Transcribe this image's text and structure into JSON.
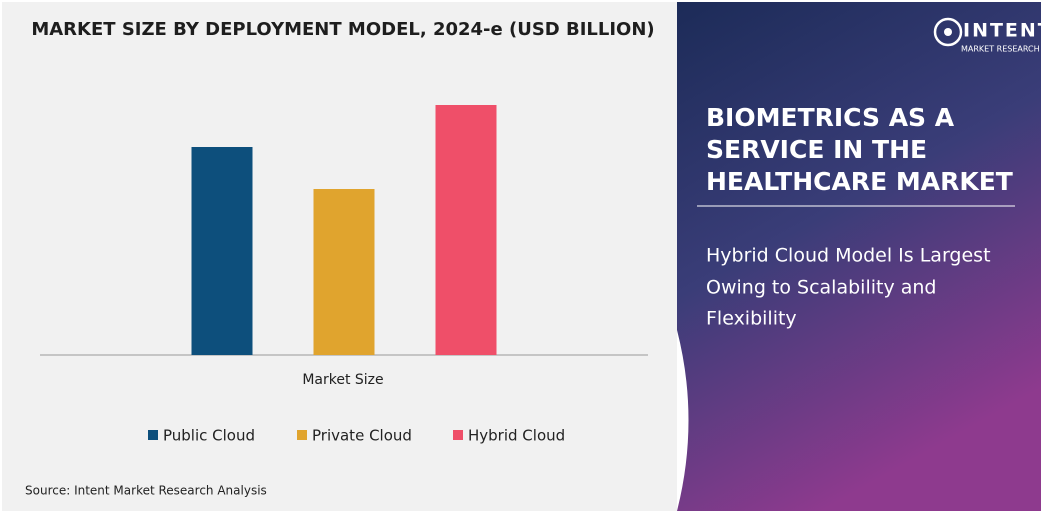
{
  "chart_data": {
    "type": "bar",
    "title": "MARKET SIZE BY DEPLOYMENT MODEL, 2024-e (USD BILLION)",
    "categories": [
      "Market Size"
    ],
    "series": [
      {
        "name": "Public Cloud",
        "color": "#0d4f7c",
        "values": [
          208
        ]
      },
      {
        "name": "Private Cloud",
        "color": "#e0a42e",
        "values": [
          166
        ]
      },
      {
        "name": "Hybrid Cloud",
        "color": "#ef4f69",
        "values": [
          250
        ]
      }
    ],
    "ylim": [
      0,
      250
    ]
  },
  "source": "Source: Intent Market Research Analysis",
  "brand": {
    "name": "INTENT",
    "tagline": "MARKET RESEARCH"
  },
  "panel": {
    "headline": [
      "BIOMETRICS AS A",
      "SERVICE IN THE",
      "HEALTHCARE MARKET"
    ],
    "subheadline": [
      "Hybrid Cloud Model Is Largest",
      "Owing to Scalability and",
      "Flexibility"
    ]
  }
}
